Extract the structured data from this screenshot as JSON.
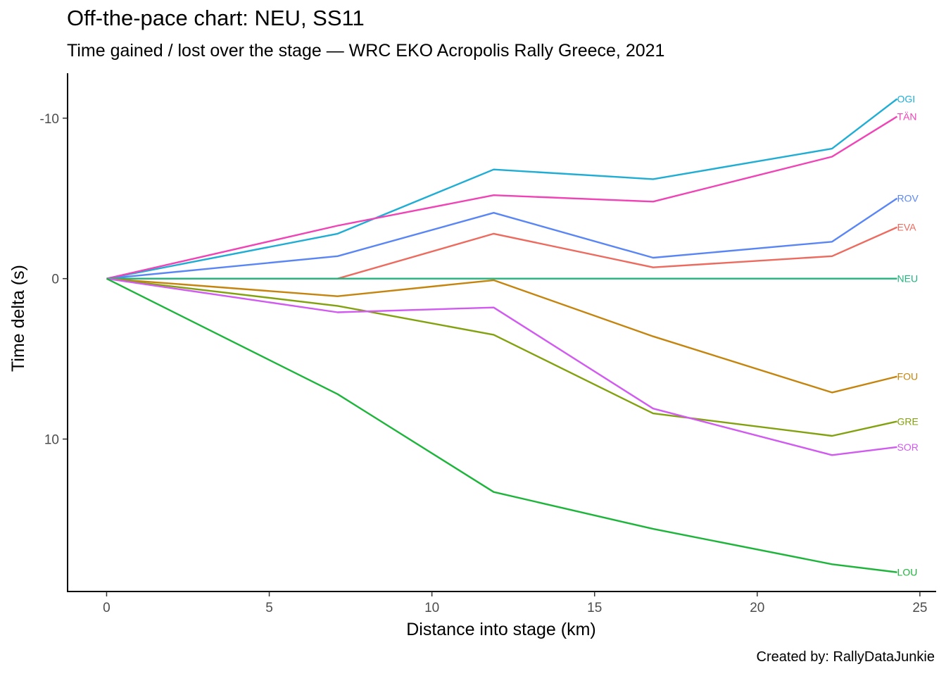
{
  "chart_data": {
    "type": "line",
    "title": "Off-the-pace chart: NEU, SS11",
    "subtitle": "Time gained / lost over the stage — WRC EKO Acropolis Rally Greece, 2021",
    "caption": "Created by: RallyDataJunkie",
    "xlabel": "Distance into stage (km)",
    "ylabel": "Time delta (s)",
    "xlim": [
      -1.2,
      25.5
    ],
    "ylim": [
      -12.8,
      19.5
    ],
    "y_reversed": true,
    "x_ticks": [
      0,
      5,
      10,
      15,
      20,
      25
    ],
    "y_ticks": [
      -10,
      0,
      10
    ],
    "y_tick_labels": [
      "-10",
      "0",
      "10"
    ],
    "grid": false,
    "legend": "none (direct labels at line ends)",
    "x": [
      0,
      7.1,
      11.9,
      16.8,
      22.3,
      24.3
    ],
    "series": [
      {
        "name": "OGI",
        "color": "#1fadd4",
        "values": [
          0,
          -2.8,
          -6.8,
          -6.2,
          -8.1,
          -11.2
        ]
      },
      {
        "name": "TÄN",
        "color": "#f043b6",
        "values": [
          0,
          -3.3,
          -5.2,
          -4.8,
          -7.6,
          -10.1
        ]
      },
      {
        "name": "ROV",
        "color": "#5a86f5",
        "values": [
          0,
          -1.4,
          -4.1,
          -1.3,
          -2.3,
          -5.0
        ]
      },
      {
        "name": "EVA",
        "color": "#ed6a5e",
        "values": [
          0,
          0.0,
          -2.8,
          -0.7,
          -1.4,
          -3.2
        ]
      },
      {
        "name": "NEU",
        "color": "#22b47f",
        "values": [
          0,
          0.0,
          0.0,
          0.0,
          0.0,
          0.0
        ]
      },
      {
        "name": "FOU",
        "color": "#c4840d",
        "values": [
          0,
          1.1,
          0.1,
          3.6,
          7.1,
          6.1
        ]
      },
      {
        "name": "GRE",
        "color": "#82a10f",
        "values": [
          0,
          1.7,
          3.5,
          8.4,
          9.8,
          8.9
        ]
      },
      {
        "name": "SOR",
        "color": "#d15af0",
        "values": [
          0,
          2.1,
          1.8,
          8.1,
          11.0,
          10.5
        ]
      },
      {
        "name": "LOU",
        "color": "#1cb53a",
        "values": [
          0,
          7.2,
          13.3,
          15.6,
          17.8,
          18.3
        ]
      }
    ]
  }
}
